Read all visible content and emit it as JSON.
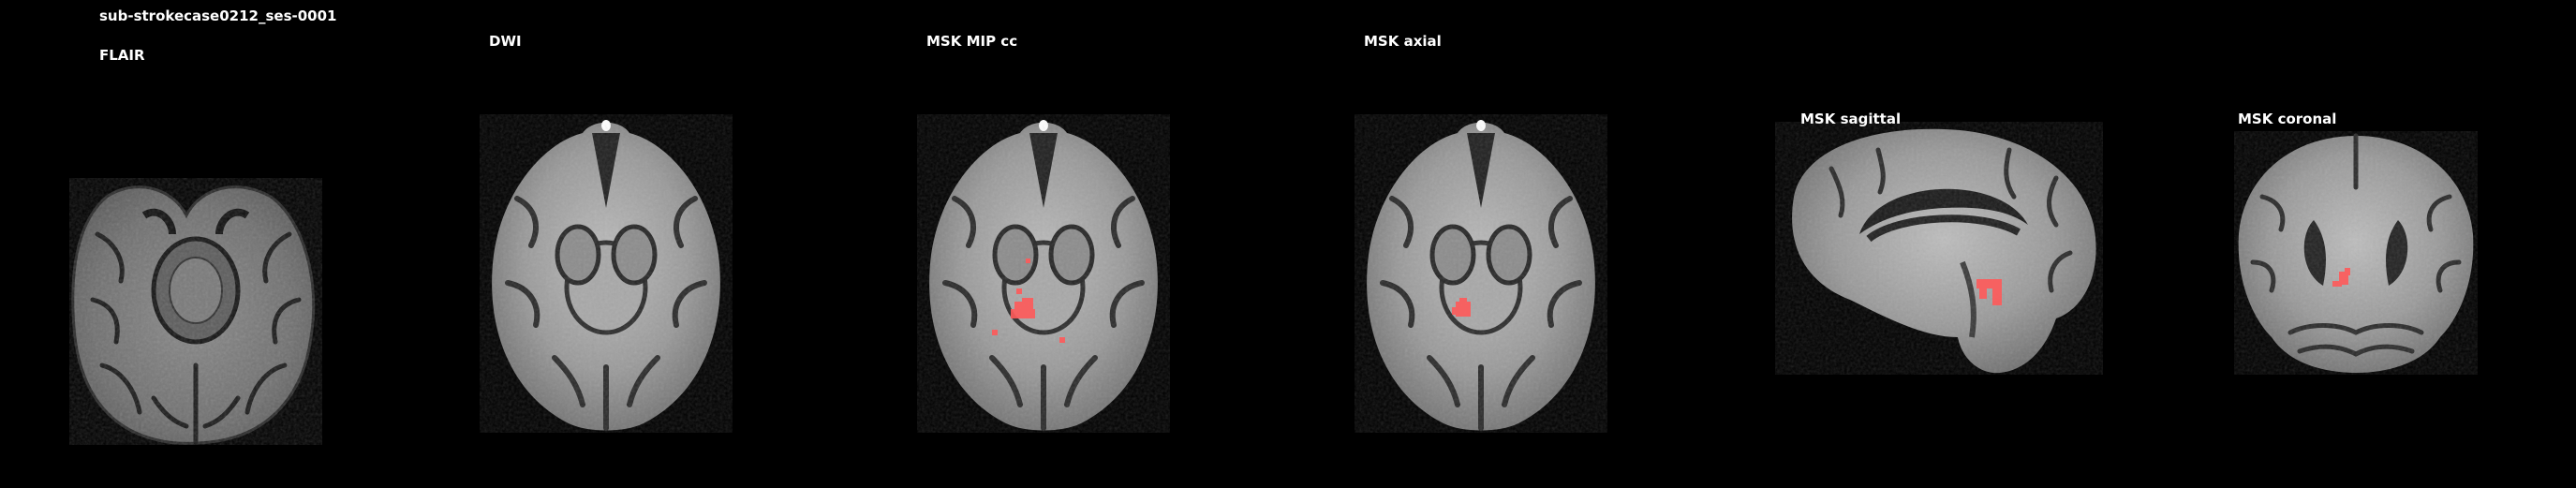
{
  "figure": {
    "subject_title": "sub-strokecase0212_ses-0001",
    "lesion_color": "#ff5a5a",
    "panels": [
      {
        "id": "flair",
        "title": "FLAIR",
        "view": "axial"
      },
      {
        "id": "dwi",
        "title": "DWI",
        "view": "axial"
      },
      {
        "id": "msk-mip-cc",
        "title": "MSK MIP cc",
        "view": "axial"
      },
      {
        "id": "msk-axial",
        "title": "MSK axial",
        "view": "axial"
      },
      {
        "id": "msk-sagittal",
        "title": "MSK sagittal",
        "view": "sagittal"
      },
      {
        "id": "msk-coronal",
        "title": "MSK coronal",
        "view": "coronal"
      }
    ]
  }
}
